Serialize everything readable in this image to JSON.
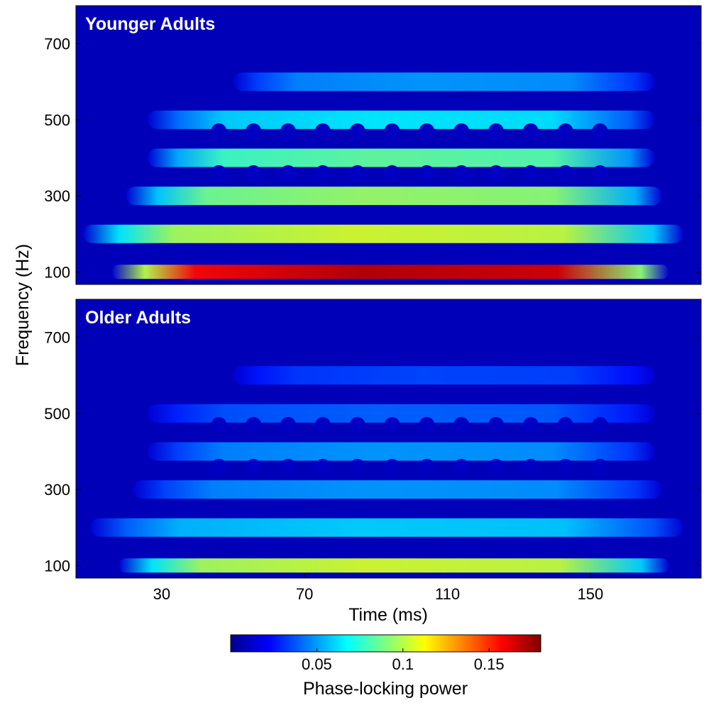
{
  "chart_data": [
    {
      "type": "heatmap",
      "title": "Younger Adults",
      "xlabel": "",
      "ylabel": "Frequency (Hz)",
      "xlim": [
        6,
        181
      ],
      "ylim": [
        67,
        800
      ],
      "yticks": [
        100,
        300,
        500,
        700
      ],
      "xticks": [],
      "clim": [
        0,
        0.18
      ],
      "series": [
        {
          "type": "band",
          "freq": 100,
          "peak": 0.17,
          "start_ms": 16,
          "end_ms": 172
        },
        {
          "type": "band",
          "freq": 200,
          "peak": 0.105,
          "start_ms": 8,
          "end_ms": 176
        },
        {
          "type": "band",
          "freq": 300,
          "peak": 0.095,
          "start_ms": 20,
          "end_ms": 170
        },
        {
          "type": "band",
          "freq": 400,
          "peak": 0.085,
          "start_ms": 26,
          "end_ms": 168
        },
        {
          "type": "band",
          "freq": 500,
          "peak": 0.065,
          "start_ms": 26,
          "end_ms": 168
        },
        {
          "type": "band",
          "freq": 600,
          "peak": 0.05,
          "start_ms": 50,
          "end_ms": 168
        },
        {
          "type": "harmonic-cells",
          "freqs": [
            360,
            470
          ],
          "period_ms": 9.7,
          "start_ms": 46,
          "end_ms": 162
        }
      ]
    },
    {
      "type": "heatmap",
      "title": "Older Adults",
      "xlabel": "Time (ms)",
      "ylabel": "Frequency (Hz)",
      "xlim": [
        6,
        181
      ],
      "ylim": [
        67,
        800
      ],
      "yticks": [
        100,
        300,
        500,
        700
      ],
      "xticks": [
        30,
        70,
        110,
        150
      ],
      "clim": [
        0,
        0.18
      ],
      "series": [
        {
          "type": "band",
          "freq": 100,
          "peak": 0.105,
          "start_ms": 18,
          "end_ms": 172
        },
        {
          "type": "band",
          "freq": 200,
          "peak": 0.06,
          "start_ms": 10,
          "end_ms": 176
        },
        {
          "type": "band",
          "freq": 300,
          "peak": 0.05,
          "start_ms": 22,
          "end_ms": 170
        },
        {
          "type": "band",
          "freq": 400,
          "peak": 0.05,
          "start_ms": 26,
          "end_ms": 168
        },
        {
          "type": "band",
          "freq": 500,
          "peak": 0.04,
          "start_ms": 26,
          "end_ms": 168
        },
        {
          "type": "band",
          "freq": 600,
          "peak": 0.035,
          "start_ms": 50,
          "end_ms": 168
        },
        {
          "type": "harmonic-cells",
          "freqs": [
            360,
            470
          ],
          "period_ms": 9.7,
          "start_ms": 46,
          "end_ms": 162
        }
      ]
    }
  ],
  "colorbar": {
    "label": "Phase-locking power",
    "ticks": [
      0.05,
      0.1,
      0.15
    ],
    "tick_labels": [
      "0.05",
      "0.1",
      "0.15"
    ],
    "range": [
      0,
      0.18
    ],
    "colormap": "jet"
  },
  "colors": {
    "text_label": "#ffffff",
    "axis": "#000000"
  }
}
